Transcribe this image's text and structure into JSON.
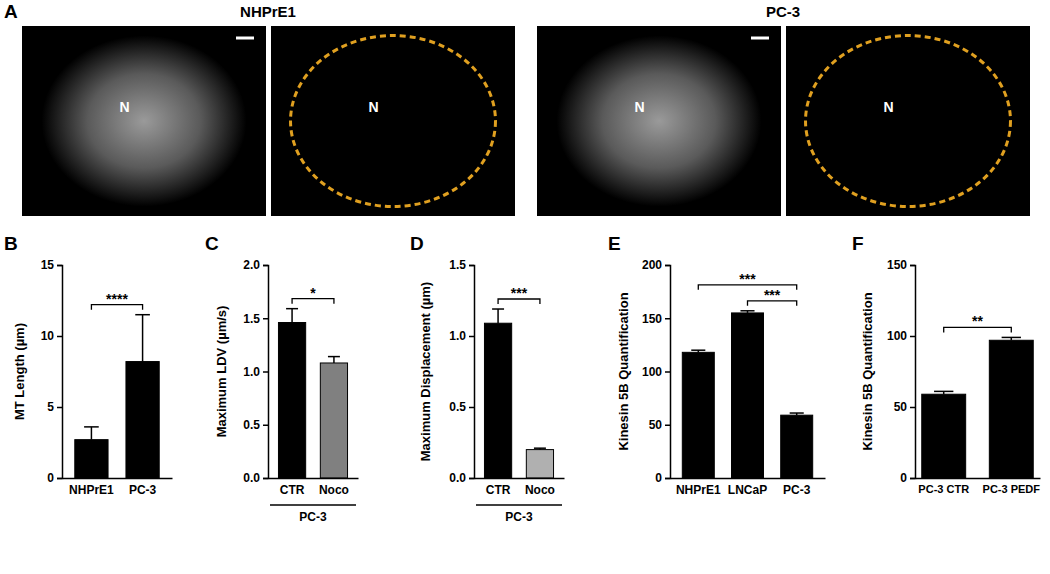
{
  "images": {
    "label": "A",
    "panels": [
      {
        "title": "NHPrE1",
        "images": [
          {
            "label": "N"
          },
          {
            "label": "N"
          }
        ]
      },
      {
        "title": "PC-3",
        "images": [
          {
            "label": "N"
          },
          {
            "label": "N"
          }
        ]
      }
    ]
  },
  "chart_data": [
    {
      "type": "bar",
      "title": "B",
      "ylabel": "MT Length (µm)",
      "categories": [
        "NHPrE1",
        "PC-3"
      ],
      "values": [
        2.7,
        8.2
      ],
      "errors": [
        0.9,
        3.3
      ],
      "colors": [
        "#000000",
        "#000000"
      ],
      "ylim": [
        0,
        15
      ],
      "yticks": [
        0,
        5,
        10,
        15
      ],
      "annotations": [
        {
          "text": "****",
          "from": 0,
          "to": 1
        }
      ]
    },
    {
      "type": "bar",
      "title": "C",
      "ylabel": "Maximum LDV (µm/s)",
      "xlabel": "PC-3",
      "categories": [
        "CTR",
        "Noco"
      ],
      "values": [
        1.46,
        1.08
      ],
      "errors": [
        0.13,
        0.06
      ],
      "colors": [
        "#000000",
        "#808080"
      ],
      "ylim": [
        0,
        2
      ],
      "yticks": [
        {
          "value": 0,
          "label": "0.0"
        },
        0.5,
        {
          "value": 1,
          "label": "1.0"
        },
        1.5,
        {
          "value": 2,
          "label": "2.0"
        }
      ],
      "annotations": [
        {
          "text": "*",
          "from": 0,
          "to": 1
        }
      ]
    },
    {
      "type": "bar",
      "title": "D",
      "ylabel": "Maximum Displacement (µm)",
      "xlabel": "PC-3",
      "categories": [
        "CTR",
        "Noco"
      ],
      "values": [
        1.09,
        0.2
      ],
      "errors": [
        0.1,
        0.01
      ],
      "colors": [
        "#000000",
        "#b0b0b0"
      ],
      "ylim": [
        0,
        1.5
      ],
      "yticks": [
        {
          "value": 0,
          "label": "0.0"
        },
        0.5,
        {
          "value": 1,
          "label": "1.0"
        },
        1.5
      ],
      "annotations": [
        {
          "text": "***",
          "from": 0,
          "to": 1
        }
      ]
    },
    {
      "type": "bar",
      "title": "E",
      "ylabel": "Kinesin 5B Quantification",
      "categories": [
        "NHPrE1",
        "LNCaP",
        "PC-3"
      ],
      "values": [
        118,
        155,
        59
      ],
      "errors": [
        2,
        2,
        2
      ],
      "colors": [
        "#000000",
        "#000000",
        "#000000"
      ],
      "ylim": [
        0,
        200
      ],
      "yticks": [
        0,
        50,
        100,
        150,
        200
      ],
      "annotations": [
        {
          "text": "***",
          "from": 0,
          "to": 2
        },
        {
          "text": "***",
          "from": 1,
          "to": 2
        }
      ]
    },
    {
      "type": "bar",
      "title": "F",
      "ylabel": "Kinesin 5B Quantification",
      "categories": [
        "PC-3 CTR",
        "PC-3 PEDF"
      ],
      "values": [
        59,
        97
      ],
      "errors": [
        2,
        2
      ],
      "colors": [
        "#000000",
        "#000000"
      ],
      "ylim": [
        0,
        150
      ],
      "yticks": [
        0,
        50,
        100,
        150
      ],
      "annotations": [
        {
          "text": "**",
          "from": 0,
          "to": 1
        }
      ]
    }
  ]
}
